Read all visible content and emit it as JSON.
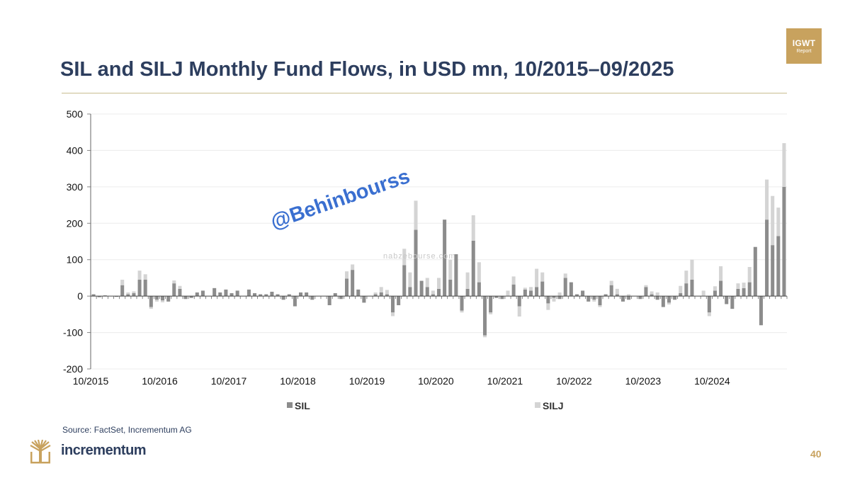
{
  "header": {
    "title": "SIL and SILJ Monthly Fund Flows, in USD mn, 10/2015–09/2025",
    "badge_line1": "IGWT",
    "badge_line2": "Report"
  },
  "footer": {
    "source": "Source: FactSet, Incrementum AG",
    "brand": "incrementum",
    "page_number": "40"
  },
  "watermark": {
    "handle": "@Behinbourss",
    "site": "nabzebourse.com"
  },
  "colors": {
    "title": "#2d3e5e",
    "accent_gold": "#c8a25e",
    "sil": "#8c8c8c",
    "silj": "#d4d4d4"
  },
  "chart_data": {
    "type": "bar",
    "stacked": true,
    "ylim": [
      -200,
      500
    ],
    "yticks": [
      500,
      400,
      300,
      200,
      100,
      0,
      -100,
      -200
    ],
    "grid": true,
    "legend_position": "bottom",
    "tick_labels": [
      "10/2015",
      "10/2016",
      "10/2017",
      "10/2018",
      "10/2019",
      "10/2020",
      "10/2021",
      "10/2022",
      "10/2023",
      "10/2024"
    ],
    "start_month": "2015-10",
    "series": [
      {
        "name": "SIL",
        "values": [
          5,
          -3,
          2,
          0,
          -2,
          30,
          5,
          8,
          45,
          45,
          -30,
          -10,
          -12,
          -15,
          35,
          20,
          -8,
          -5,
          10,
          15,
          0,
          22,
          10,
          18,
          8,
          15,
          0,
          18,
          8,
          5,
          5,
          12,
          5,
          -10,
          5,
          -28,
          10,
          10,
          -10,
          0,
          0,
          -25,
          8,
          -8,
          48,
          72,
          18,
          -18,
          0,
          5,
          10,
          5,
          -45,
          -25,
          85,
          25,
          182,
          42,
          25,
          5,
          20,
          210,
          45,
          115,
          -40,
          20,
          152,
          38,
          -108,
          -45,
          -5,
          -8,
          0,
          32,
          -28,
          18,
          15,
          25,
          40,
          -20,
          -5,
          -8,
          50,
          38,
          5,
          15,
          -15,
          -10,
          -25,
          5,
          30,
          5,
          -15,
          -10,
          0,
          -8,
          25,
          5,
          -10,
          -30,
          -18,
          -10,
          8,
          35,
          45,
          0,
          0,
          -45,
          15,
          42,
          -22,
          -35,
          20,
          22,
          38,
          135,
          -80,
          210,
          140,
          165,
          300
        ],
        "color": "#8c8c8c"
      },
      {
        "name": "SILJ",
        "values": [
          0,
          0,
          0,
          0,
          0,
          15,
          5,
          5,
          25,
          15,
          -5,
          -5,
          -5,
          0,
          8,
          8,
          0,
          0,
          0,
          0,
          0,
          0,
          0,
          0,
          0,
          0,
          0,
          0,
          0,
          0,
          0,
          0,
          0,
          0,
          0,
          0,
          0,
          0,
          0,
          0,
          0,
          0,
          0,
          0,
          20,
          15,
          0,
          0,
          0,
          5,
          15,
          12,
          -10,
          0,
          45,
          40,
          80,
          0,
          25,
          10,
          30,
          0,
          55,
          0,
          -5,
          45,
          70,
          55,
          -5,
          -5,
          0,
          0,
          15,
          22,
          -28,
          5,
          10,
          50,
          25,
          -18,
          -10,
          10,
          12,
          0,
          0,
          0,
          0,
          -5,
          -5,
          0,
          12,
          15,
          0,
          5,
          0,
          0,
          5,
          8,
          10,
          0,
          -5,
          0,
          20,
          35,
          55,
          0,
          15,
          -10,
          12,
          40,
          0,
          0,
          15,
          15,
          42,
          0,
          0,
          110,
          135,
          78,
          120
        ],
        "color": "#d4d4d4"
      }
    ]
  }
}
